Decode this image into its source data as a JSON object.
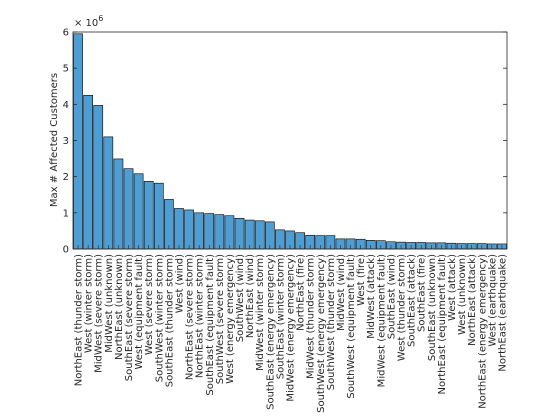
{
  "chart_data": {
    "type": "bar",
    "ylabel": "Max # Affected Customers",
    "exponent_label": "× 10",
    "exponent_power": "6",
    "ylim": [
      0,
      6
    ],
    "yticks": [
      "0",
      "1",
      "2",
      "3",
      "4",
      "5",
      "6"
    ],
    "ytick_values": [
      0,
      1,
      2,
      3,
      4,
      5,
      6
    ],
    "colors": {
      "bar": "#4f9ed3",
      "edge": "#000000"
    },
    "grid": false,
    "categories": [
      "NorthEast (thunder storm)",
      "West (winter storm)",
      "MidWest (severe storm)",
      "MidWest (unknown)",
      "NorthEast (unknown)",
      "SouthEast (severe storm)",
      "West (equipment fault)",
      "West (severe storm)",
      "SouthWest (winter storm)",
      "SouthEast (thunder storm)",
      "West (wind)",
      "NorthEast (severe storm)",
      "NorthEast (winter storm)",
      "SouthEast (equipment fault)",
      "SouthWest (severe storm)",
      "West (energy emergency)",
      "SouthWest (wind)",
      "NorthEast (wind)",
      "MidWest (winter storm)",
      "SouthEast (energy emergency)",
      "SouthEast (winter storm)",
      "MidWest (energy emergency)",
      "NorthEast (fire)",
      "MidWest (thunder storm)",
      "SouthWest (energy emergency)",
      "SouthWest (thunder storm)",
      "MidWest (wind)",
      "SouthWest (equipment fault)",
      "West (fire)",
      "MidWest (attack)",
      "MidWest (equipment fault)",
      "SouthEast (wind)",
      "West (thunder storm)",
      "SouthEast (attack)",
      "SouthEast (fire)",
      "SouthEast (unknown)",
      "NorthEast (equipment fault)",
      "West (attack)",
      "West (unknown)",
      "NorthEast (attack)",
      "NorthEast (energy emergency)",
      "West (earthquake)",
      "NorthEast (earthquake)"
    ],
    "values": [
      5.95,
      4.25,
      3.97,
      3.1,
      2.49,
      2.22,
      2.08,
      1.87,
      1.82,
      1.37,
      1.12,
      1.08,
      1.0,
      0.98,
      0.95,
      0.92,
      0.85,
      0.8,
      0.78,
      0.75,
      0.53,
      0.5,
      0.45,
      0.38,
      0.37,
      0.37,
      0.28,
      0.28,
      0.27,
      0.24,
      0.23,
      0.2,
      0.19,
      0.18,
      0.18,
      0.17,
      0.17,
      0.16,
      0.15,
      0.15,
      0.15,
      0.14,
      0.14
    ]
  }
}
